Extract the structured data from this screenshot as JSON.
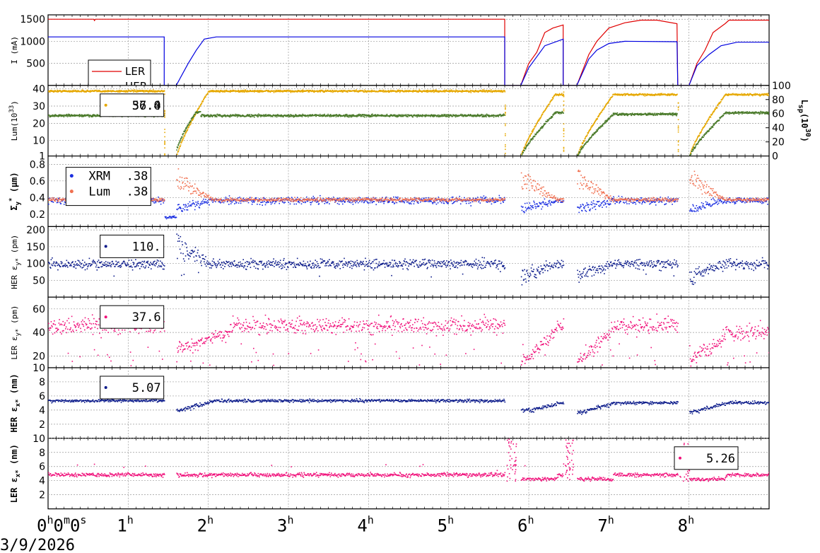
{
  "date_label": "3/9/2026",
  "x_ticks": [
    {
      "main": "0",
      "sup": "h",
      "extra": [
        {
          "t": "0",
          "s": "m"
        },
        {
          "t": "0",
          "s": "s"
        }
      ],
      "hour": 0
    },
    {
      "main": "1",
      "sup": "h",
      "hour": 1
    },
    {
      "main": "2",
      "sup": "h",
      "hour": 2
    },
    {
      "main": "3",
      "sup": "h",
      "hour": 3
    },
    {
      "main": "4",
      "sup": "h",
      "hour": 4
    },
    {
      "main": "5",
      "sup": "h",
      "hour": 5
    },
    {
      "main": "6",
      "sup": "h",
      "hour": 6
    },
    {
      "main": "7",
      "sup": "h",
      "hour": 7
    },
    {
      "main": "8",
      "sup": "h",
      "hour": 8
    }
  ],
  "xlim_hours": [
    0,
    9
  ],
  "colors": {
    "ler_current": "#e00000",
    "her_current": "#0000e0",
    "lum_orange": "#e6a800",
    "lum_green": "#4a7a2a",
    "xrm_blue": "#1a2ee0",
    "lum_salmon": "#f07050",
    "her_navy": "#0a1a8a",
    "ler_pink": "#f0107a"
  },
  "chart_data": [
    {
      "type": "line",
      "panel": "current",
      "ylabel": "I (mA)",
      "yticks": [
        500,
        1000,
        1500
      ],
      "ylim": [
        0,
        1600
      ],
      "legend": [
        {
          "name": "LER",
          "color": "#e00000"
        },
        {
          "name": "HER",
          "color": "#0000e0"
        }
      ],
      "series": [
        {
          "name": "LER",
          "points": [
            [
              0,
              1500
            ],
            [
              0.57,
              1500
            ],
            [
              0.58,
              1470
            ],
            [
              0.59,
              1500
            ],
            [
              5.7,
              1500
            ],
            [
              5.7,
              0
            ],
            [
              5.9,
              0
            ],
            [
              6.0,
              500
            ],
            [
              6.1,
              750
            ],
            [
              6.2,
              1200
            ],
            [
              6.3,
              1300
            ],
            [
              6.43,
              1370
            ],
            [
              6.43,
              0
            ],
            [
              6.6,
              0
            ],
            [
              6.75,
              700
            ],
            [
              6.85,
              1000
            ],
            [
              7.0,
              1300
            ],
            [
              7.2,
              1420
            ],
            [
              7.4,
              1480
            ],
            [
              7.6,
              1480
            ],
            [
              7.85,
              1400
            ],
            [
              7.86,
              0
            ],
            [
              8.0,
              0
            ],
            [
              8.1,
              500
            ],
            [
              8.2,
              800
            ],
            [
              8.3,
              1200
            ],
            [
              8.45,
              1400
            ],
            [
              8.5,
              1480
            ],
            [
              9.0,
              1480
            ]
          ]
        },
        {
          "name": "HER",
          "points": [
            [
              0,
              1100
            ],
            [
              1.45,
              1100
            ],
            [
              1.45,
              0
            ],
            [
              1.6,
              0
            ],
            [
              1.75,
              500
            ],
            [
              1.85,
              800
            ],
            [
              1.95,
              1050
            ],
            [
              2.1,
              1100
            ],
            [
              5.7,
              1100
            ],
            [
              5.7,
              0
            ],
            [
              5.9,
              0
            ],
            [
              6.0,
              400
            ],
            [
              6.1,
              650
            ],
            [
              6.2,
              900
            ],
            [
              6.43,
              1050
            ],
            [
              6.43,
              0
            ],
            [
              6.6,
              0
            ],
            [
              6.75,
              600
            ],
            [
              6.85,
              800
            ],
            [
              7.0,
              950
            ],
            [
              7.2,
              1000
            ],
            [
              7.85,
              990
            ],
            [
              7.86,
              0
            ],
            [
              8.0,
              0
            ],
            [
              8.1,
              450
            ],
            [
              8.25,
              700
            ],
            [
              8.4,
              900
            ],
            [
              8.6,
              980
            ],
            [
              9.0,
              980
            ]
          ]
        }
      ]
    },
    {
      "type": "scatter",
      "panel": "luminosity",
      "ylabel": "Lum(10",
      "ylabel_sup": "33",
      "ylabel_end": ")",
      "yticks": [
        1,
        10,
        20,
        30,
        40
      ],
      "ylim": [
        1,
        42
      ],
      "y2label": "L",
      "y2label_sub": "sp",
      "y2label_mid": "(10",
      "y2label_sup": "30",
      "y2label_end": ")",
      "y2ticks": [
        0,
        20,
        40,
        60,
        80,
        100
      ],
      "y2lim": [
        0,
        100
      ],
      "value_box": {
        "values": [
          "57.0",
          "36.4"
        ],
        "hour": 0.65
      },
      "series": [
        {
          "name": "Lum",
          "color": "#e6a800",
          "axis": "left",
          "segments": [
            [
              0,
              1.45,
              39
            ],
            [
              1.6,
              2.1,
              "rise",
              1,
              39
            ],
            [
              2.1,
              5.7,
              39
            ],
            [
              5.9,
              6.43,
              "rise",
              1,
              37
            ],
            [
              6.6,
              7.85,
              "rise",
              1,
              37
            ],
            [
              8.0,
              9.0,
              "rise",
              1,
              37
            ]
          ]
        },
        {
          "name": "Lsp",
          "color": "#4a7a2a",
          "axis": "right",
          "segments": [
            [
              0,
              1.45,
              58
            ],
            [
              1.6,
              1.9,
              "rise",
              10,
              63
            ],
            [
              1.9,
              5.7,
              58
            ],
            [
              5.9,
              6.43,
              "rise",
              0,
              62
            ],
            [
              6.6,
              7.85,
              "rise",
              0,
              60
            ],
            [
              8.0,
              9.0,
              "rise",
              0,
              62
            ]
          ]
        }
      ]
    },
    {
      "type": "scatter",
      "panel": "sigma_y",
      "ylabel": "Σ",
      "ylabel_sub": "y",
      "ylabel_sup": "*",
      "ylabel_end": " (μm)",
      "yticks": [
        0.2,
        0.4,
        0.6,
        0.8
      ],
      "ylim": [
        0.05,
        0.9
      ],
      "legend": [
        {
          "name": "XRM",
          "value": ".38",
          "color": "#1a2ee0"
        },
        {
          "name": "Lum",
          "value": ".38",
          "color": "#f07050"
        }
      ],
      "legend_hour": 0.4,
      "series": [
        {
          "name": "XRM",
          "color": "#1a2ee0",
          "base": 0.37,
          "spread": 0.03
        },
        {
          "name": "Lum",
          "color": "#f07050",
          "base": 0.38,
          "spread": 0.015
        }
      ]
    },
    {
      "type": "scatter",
      "panel": "her_emit_y",
      "ylabel": "HER ε",
      "ylabel_sub": "y*",
      "ylabel_end": " (pm)",
      "yticks": [
        50,
        100,
        150,
        200
      ],
      "ylim": [
        0,
        210
      ],
      "value_box": {
        "values": [
          "110."
        ],
        "hour": 0.65
      },
      "series": [
        {
          "name": "HER",
          "color": "#0a1a8a",
          "base": 100,
          "spread": 10
        }
      ]
    },
    {
      "type": "scatter",
      "panel": "ler_emit_y",
      "ylabel": "LER ε",
      "ylabel_sub": "y*",
      "ylabel_end": " (pm)",
      "yticks": [
        10,
        20,
        40,
        60
      ],
      "ylim": [
        10,
        70
      ],
      "value_box": {
        "values": [
          "37.6"
        ],
        "hour": 0.65
      },
      "series": [
        {
          "name": "LER",
          "color": "#f0107a",
          "base": 46,
          "spread": 5
        }
      ]
    },
    {
      "type": "scatter",
      "panel": "her_emit_x",
      "ylabel": "HER ε",
      "ylabel_sub": "x*",
      "ylabel_end": " (nm)",
      "yticks": [
        2,
        4,
        6,
        8
      ],
      "ylim": [
        0,
        10
      ],
      "value_box": {
        "values": [
          "5.07"
        ],
        "hour": 0.65
      },
      "series": [
        {
          "name": "HER",
          "color": "#0a1a8a",
          "base": 5.4,
          "spread": 0.15
        }
      ]
    },
    {
      "type": "scatter",
      "panel": "ler_emit_x",
      "ylabel": "LER ε",
      "ylabel_sub": "x*",
      "ylabel_end": " (nm)",
      "yticks": [
        2,
        4,
        6,
        8,
        10
      ],
      "ylim": [
        0,
        10
      ],
      "value_box": {
        "values": [
          "5.26"
        ],
        "hour": 7.8
      },
      "series": [
        {
          "name": "LER",
          "color": "#f0107a",
          "base": 4.9,
          "spread": 0.2
        }
      ]
    }
  ]
}
